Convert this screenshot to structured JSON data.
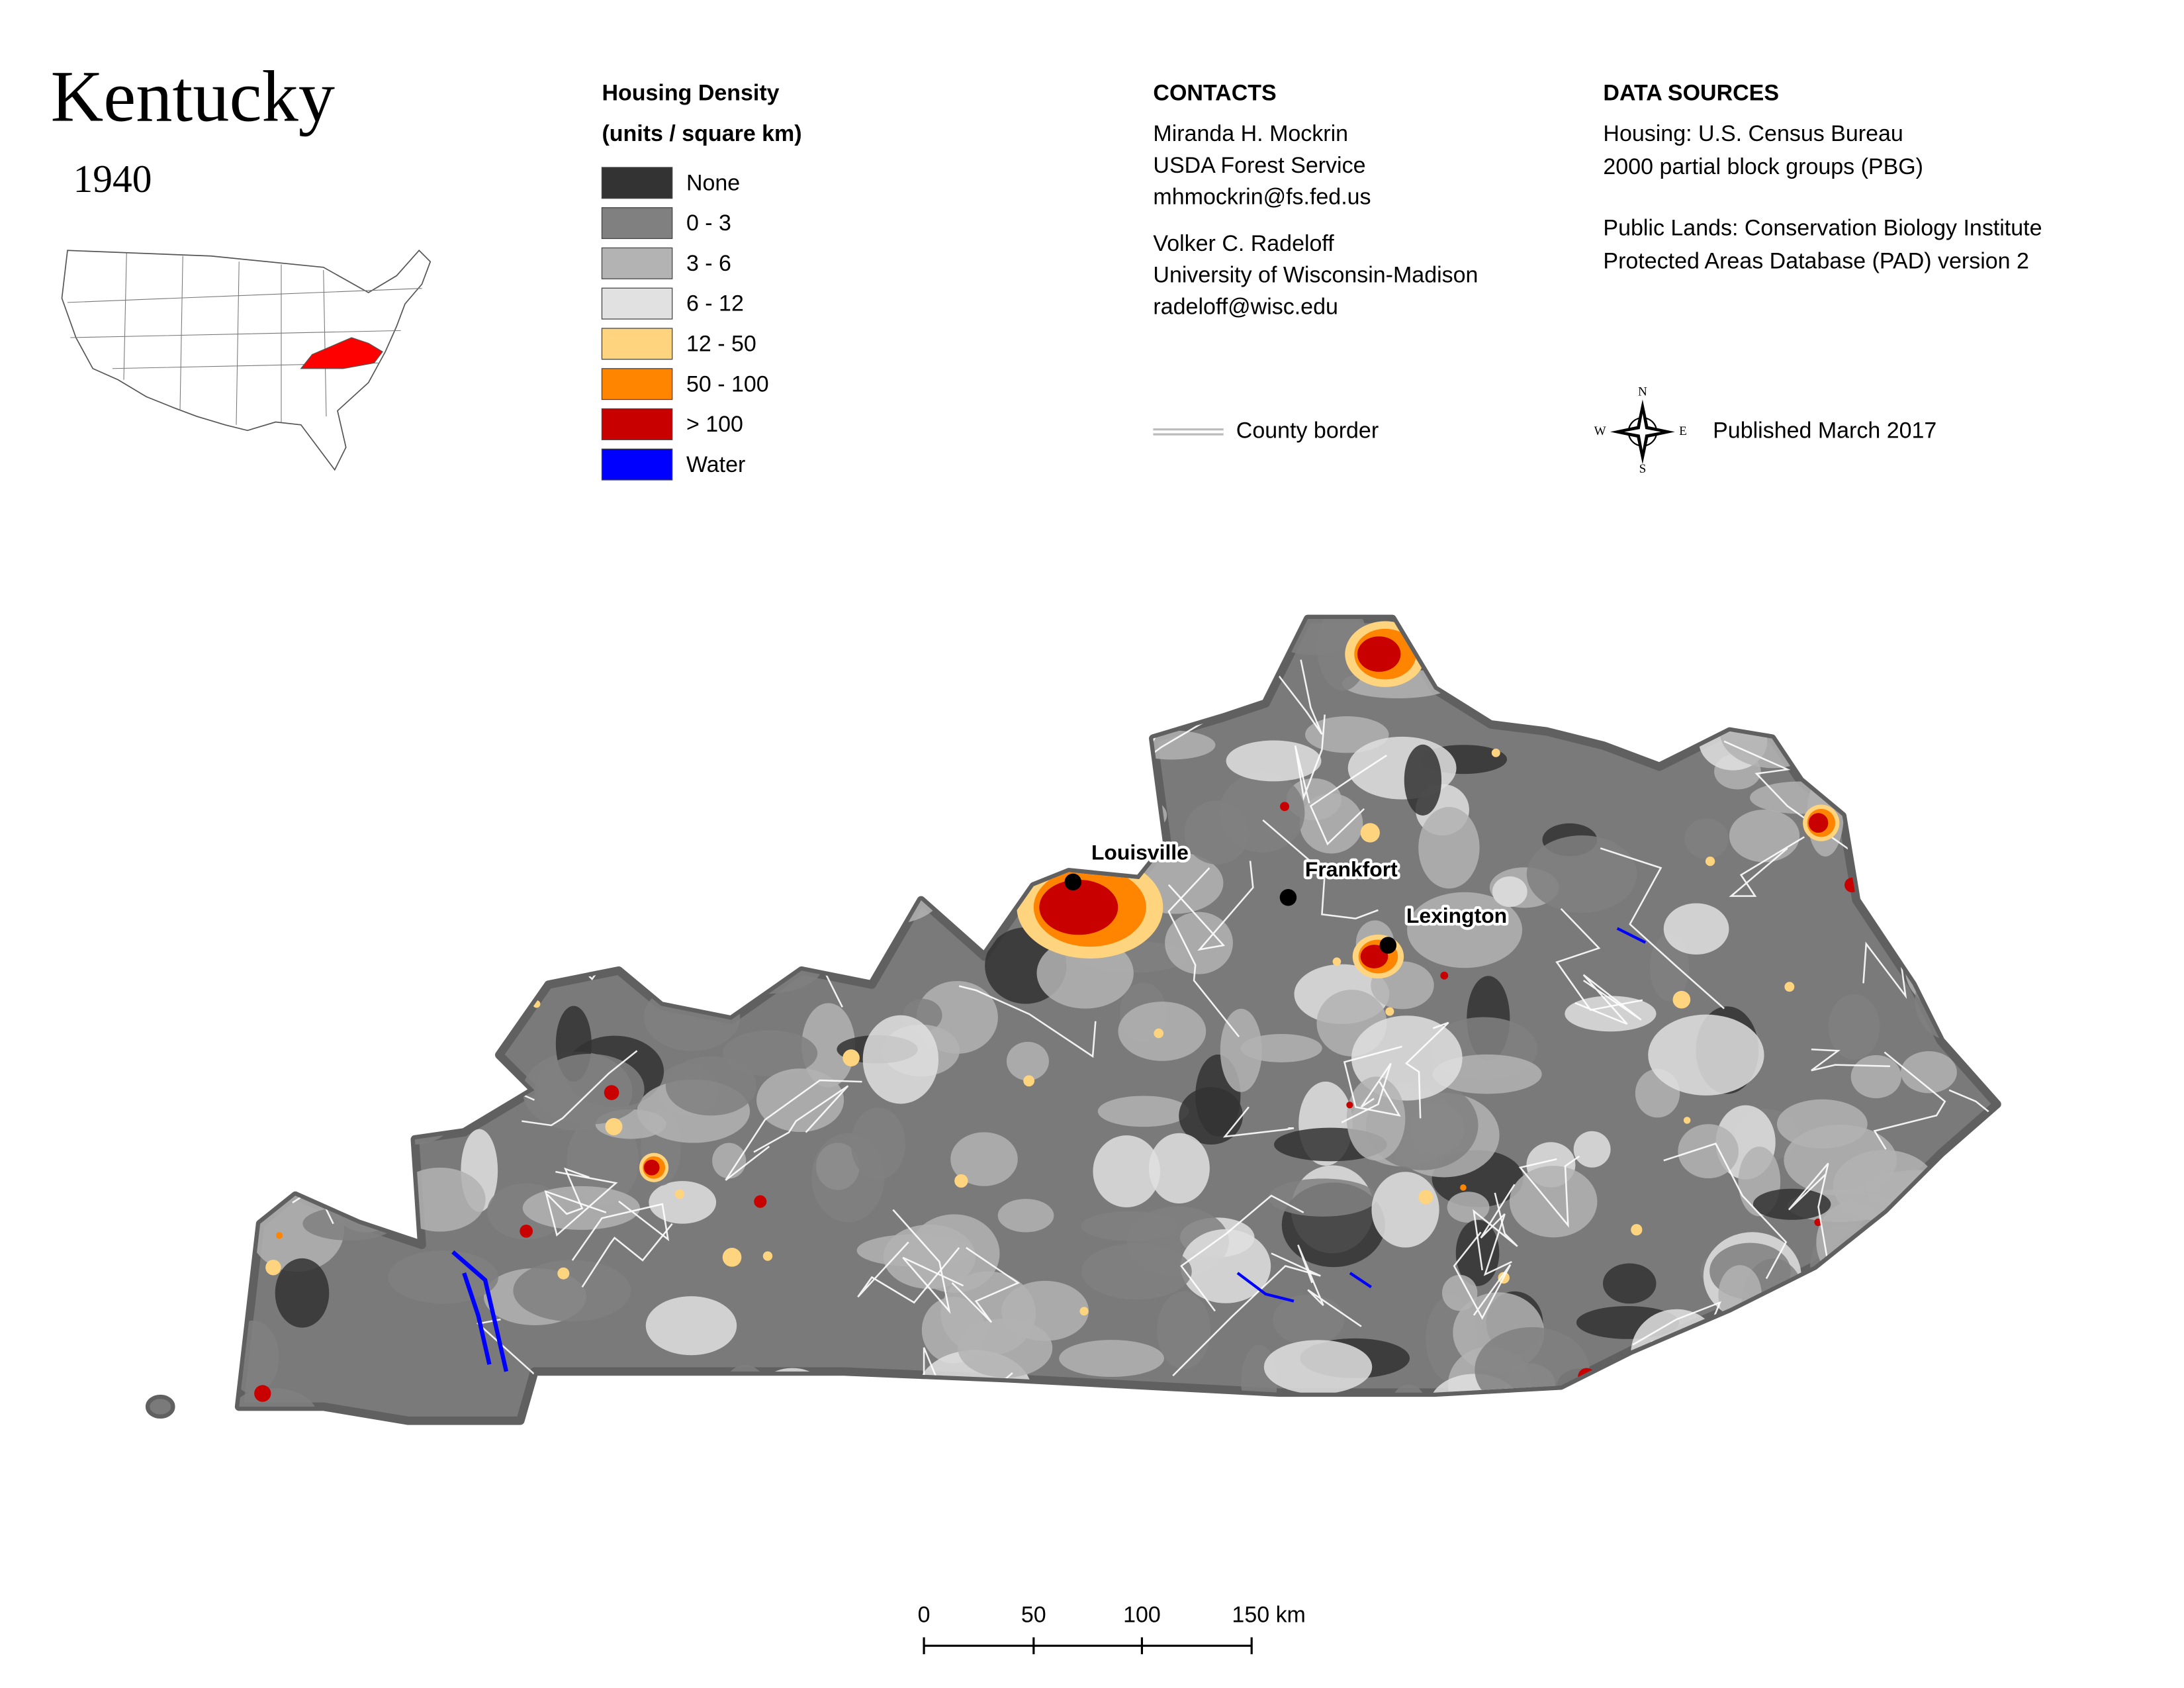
{
  "title": "Kentucky",
  "year": "1940",
  "legend": {
    "title": "Housing Density",
    "subtitle": "(units / square km)",
    "items": [
      {
        "label": "None",
        "color": "#333333"
      },
      {
        "label": "0 - 3",
        "color": "#808080"
      },
      {
        "label": "3 - 6",
        "color": "#b3b3b3"
      },
      {
        "label": "6 - 12",
        "color": "#e1e1e1"
      },
      {
        "label": "12 - 50",
        "color": "#ffd47f"
      },
      {
        "label": "50 - 100",
        "color": "#ff8500"
      },
      {
        "label": "> 100",
        "color": "#c80000"
      },
      {
        "label": "Water",
        "color": "#0000ff"
      }
    ]
  },
  "contacts": {
    "heading": "CONTACTS",
    "people": [
      [
        "Miranda H. Mockrin",
        "USDA Forest Service",
        "mhmockrin@fs.fed.us"
      ],
      [
        "Volker C. Radeloff",
        "University of Wisconsin-Madison",
        "radeloff@wisc.edu"
      ]
    ]
  },
  "data_sources": {
    "heading": "DATA SOURCES",
    "groups": [
      [
        "Housing: U.S. Census Bureau",
        "2000 partial block groups (PBG)"
      ],
      [
        "Public Lands: Conservation Biology Institute",
        "Protected Areas Database (PAD) version 2"
      ]
    ]
  },
  "county_border_label": "County border",
  "compass": {
    "n": "N",
    "e": "E",
    "s": "S",
    "w": "W"
  },
  "published": "Published March 2017",
  "cities": [
    "Louisville",
    "Frankfort",
    "Lexington"
  ],
  "scale_bar": [
    "0",
    "50",
    "100",
    "150 km"
  ]
}
